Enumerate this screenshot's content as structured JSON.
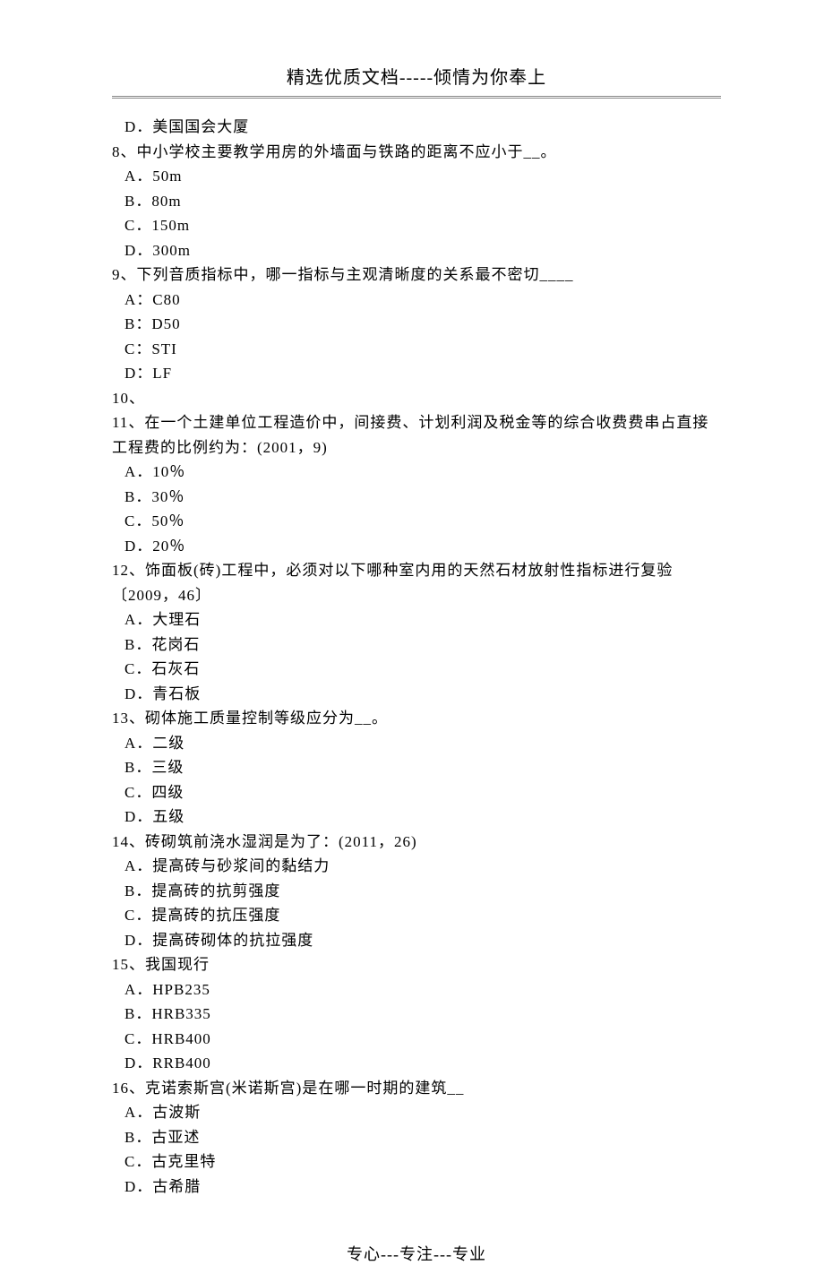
{
  "header": "精选优质文档-----倾情为你奉上",
  "footer": "专心---专注---专业",
  "content": {
    "q7_opt_d": "D．美国国会大厦",
    "q8_text": "8、中小学校主要教学用房的外墙面与铁路的距离不应小于__。",
    "q8_a": "A．50m",
    "q8_b": "B．80m",
    "q8_c": "C．150m",
    "q8_d": "D．300m",
    "q9_text": "9、下列音质指标中，哪一指标与主观清晰度的关系最不密切____",
    "q9_a": "A：C80",
    "q9_b": "B：D50",
    "q9_c": "C：STI",
    "q9_d": "D：LF",
    "q10_text": "10、",
    "q11_text": "11、在一个土建单位工程造价中，间接费、计划利润及税金等的综合收费费串占直接工程费的比例约为：(2001，9)",
    "q11_a": "A．10％",
    "q11_b": "B．30％",
    "q11_c": "C．50％",
    "q11_d": "D．20％",
    "q12_text": "12、饰面板(砖)工程中，必须对以下哪种室内用的天然石材放射性指标进行复验〔2009，46〕",
    "q12_a": "A．大理石",
    "q12_b": "B．花岗石",
    "q12_c": "C．石灰石",
    "q12_d": "D．青石板",
    "q13_text": "13、砌体施工质量控制等级应分为__。",
    "q13_a": "A．二级",
    "q13_b": "B．三级",
    "q13_c": "C．四级",
    "q13_d": "D．五级",
    "q14_text": "14、砖砌筑前浇水湿润是为了：(2011，26)",
    "q14_a": "A．提高砖与砂浆间的黏结力",
    "q14_b": "B．提高砖的抗剪强度",
    "q14_c": "C．提高砖的抗压强度",
    "q14_d": "D．提高砖砌体的抗拉强度",
    "q15_text": "15、我国现行",
    "q15_a": "A．HPB235",
    "q15_b": "B．HRB335",
    "q15_c": "C．HRB400",
    "q15_d": "D．RRB400",
    "q16_text": "16、克诺索斯宫(米诺斯宫)是在哪一时期的建筑__",
    "q16_a": "A．古波斯",
    "q16_b": "B．古亚述",
    "q16_c": "C．古克里特",
    "q16_d": "D．古希腊"
  }
}
